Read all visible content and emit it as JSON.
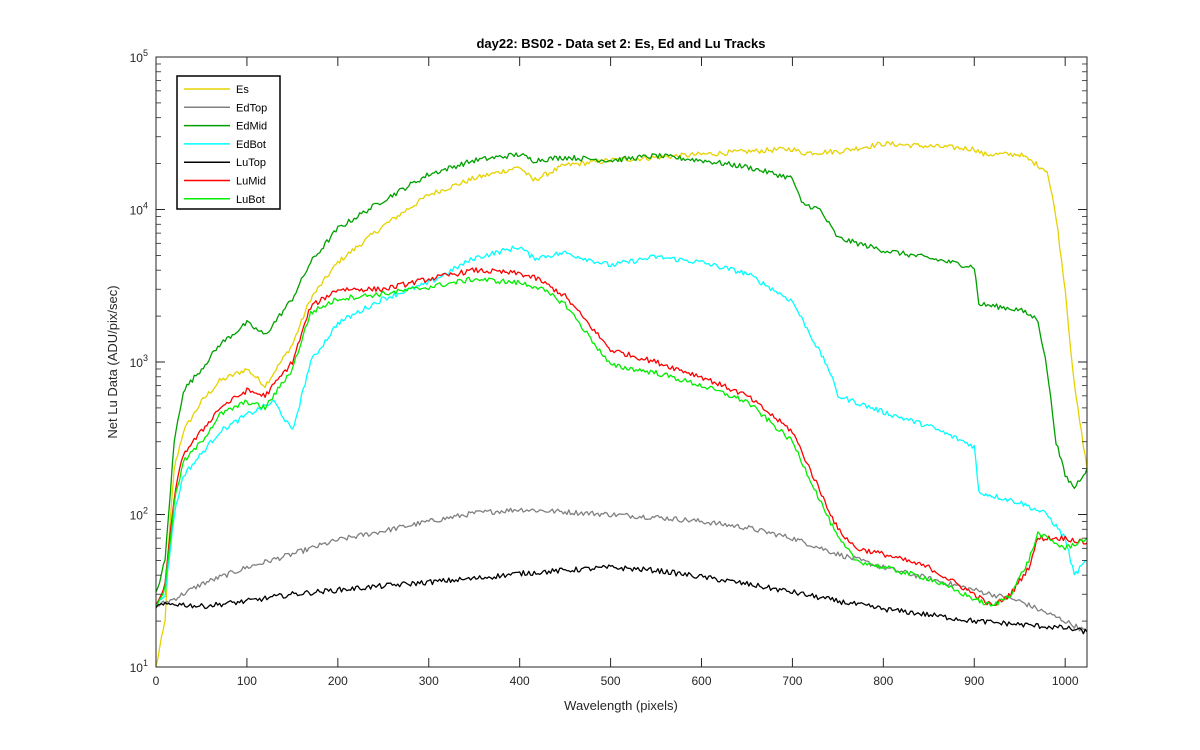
{
  "chart_data": {
    "type": "line",
    "title": "day22: BS02 - Data set 2: Es, Ed and Lu Tracks",
    "xlabel": "Wavelength (pixels)",
    "ylabel": "Net Lu Data (ADU/pix/sec)",
    "xlim": [
      0,
      1024
    ],
    "ylim": [
      10,
      100000
    ],
    "yscale": "log",
    "x_ticks": [
      0,
      100,
      200,
      300,
      400,
      500,
      600,
      700,
      800,
      900,
      1000
    ],
    "y_ticks": [
      {
        "value": 10,
        "base": "10",
        "exp": "1"
      },
      {
        "value": 100,
        "base": "10",
        "exp": "2"
      },
      {
        "value": 1000,
        "base": "10",
        "exp": "3"
      },
      {
        "value": 10000,
        "base": "10",
        "exp": "4"
      },
      {
        "value": 100000,
        "base": "10",
        "exp": "5"
      }
    ],
    "grid": false,
    "legend_position": "top-left",
    "series": [
      {
        "name": "Es",
        "color": "#e6d200",
        "x": [
          0,
          10,
          15,
          20,
          30,
          50,
          70,
          100,
          120,
          150,
          170,
          200,
          250,
          300,
          350,
          400,
          415,
          450,
          500,
          600,
          700,
          710,
          750,
          800,
          850,
          900,
          910,
          950,
          980,
          990,
          1000,
          1010,
          1024
        ],
        "y": [
          10,
          20,
          80,
          200,
          350,
          550,
          750,
          900,
          700,
          1300,
          2600,
          4500,
          7800,
          12500,
          16000,
          19000,
          15500,
          19500,
          21000,
          23000,
          25000,
          23500,
          24000,
          27000,
          26000,
          25000,
          23000,
          23000,
          18000,
          9000,
          3000,
          700,
          200
        ]
      },
      {
        "name": "EdTop",
        "color": "#808080",
        "x": [
          0,
          20,
          50,
          100,
          150,
          200,
          250,
          300,
          350,
          400,
          450,
          500,
          550,
          600,
          650,
          700,
          750,
          800,
          850,
          900,
          950,
          1000,
          1024
        ],
        "y": [
          25,
          28,
          35,
          45,
          55,
          68,
          78,
          90,
          102,
          108,
          104,
          100,
          96,
          90,
          82,
          70,
          55,
          45,
          38,
          32,
          27,
          20,
          17
        ]
      },
      {
        "name": "EdMid",
        "color": "#00a000",
        "x": [
          0,
          10,
          20,
          30,
          50,
          70,
          100,
          120,
          150,
          170,
          200,
          250,
          300,
          350,
          400,
          415,
          450,
          500,
          550,
          600,
          650,
          700,
          710,
          730,
          750,
          800,
          850,
          900,
          905,
          950,
          970,
          980,
          990,
          1000,
          1010,
          1024
        ],
        "y": [
          30,
          50,
          300,
          650,
          900,
          1300,
          1800,
          1500,
          2600,
          4500,
          7500,
          11500,
          17000,
          21000,
          23000,
          21000,
          22000,
          21000,
          22500,
          21000,
          19000,
          16000,
          11000,
          10000,
          6500,
          5400,
          4800,
          4200,
          2400,
          2200,
          1900,
          900,
          300,
          180,
          150,
          200
        ]
      },
      {
        "name": "EdBot",
        "color": "#00ffff",
        "x": [
          0,
          10,
          20,
          30,
          50,
          70,
          100,
          130,
          150,
          170,
          200,
          250,
          300,
          350,
          400,
          415,
          450,
          500,
          550,
          600,
          650,
          700,
          720,
          740,
          750,
          800,
          850,
          900,
          905,
          950,
          980,
          1000,
          1010,
          1024
        ],
        "y": [
          25,
          30,
          100,
          180,
          250,
          350,
          450,
          550,
          350,
          1000,
          1800,
          2600,
          3300,
          4800,
          5700,
          4800,
          5200,
          4300,
          4900,
          4500,
          3800,
          2500,
          1500,
          900,
          600,
          470,
          380,
          280,
          140,
          120,
          100,
          70,
          40,
          50
        ]
      },
      {
        "name": "LuTop",
        "color": "#000000",
        "x": [
          0,
          20,
          50,
          100,
          150,
          200,
          250,
          300,
          350,
          400,
          450,
          500,
          550,
          600,
          650,
          700,
          750,
          800,
          850,
          900,
          950,
          1000,
          1024
        ],
        "y": [
          25,
          26,
          25,
          27,
          30,
          32,
          34,
          36,
          38,
          41,
          43,
          45,
          43,
          39,
          35,
          31,
          27,
          24,
          22,
          20,
          19,
          18,
          17
        ]
      },
      {
        "name": "LuMid",
        "color": "#ff0000",
        "x": [
          0,
          10,
          20,
          30,
          50,
          70,
          100,
          120,
          150,
          170,
          200,
          250,
          300,
          350,
          400,
          420,
          450,
          500,
          550,
          600,
          650,
          700,
          750,
          770,
          800,
          850,
          900,
          920,
          940,
          960,
          970,
          1000,
          1024
        ],
        "y": [
          25,
          35,
          130,
          250,
          350,
          500,
          650,
          600,
          1000,
          2300,
          3000,
          3000,
          3500,
          4000,
          3800,
          3500,
          2700,
          1200,
          1000,
          800,
          600,
          350,
          80,
          60,
          55,
          45,
          30,
          25,
          30,
          45,
          70,
          70,
          65
        ]
      },
      {
        "name": "LuBot",
        "color": "#00ee00",
        "x": [
          0,
          10,
          20,
          30,
          50,
          70,
          100,
          120,
          150,
          170,
          200,
          250,
          300,
          350,
          400,
          420,
          450,
          500,
          550,
          600,
          650,
          700,
          750,
          770,
          800,
          850,
          900,
          920,
          940,
          960,
          970,
          1000,
          1024
        ],
        "y": [
          25,
          33,
          120,
          220,
          300,
          450,
          550,
          500,
          900,
          2100,
          2600,
          2800,
          3100,
          3500,
          3300,
          3100,
          2400,
          950,
          850,
          700,
          550,
          300,
          70,
          50,
          45,
          38,
          28,
          25,
          30,
          50,
          75,
          60,
          70
        ]
      }
    ]
  }
}
